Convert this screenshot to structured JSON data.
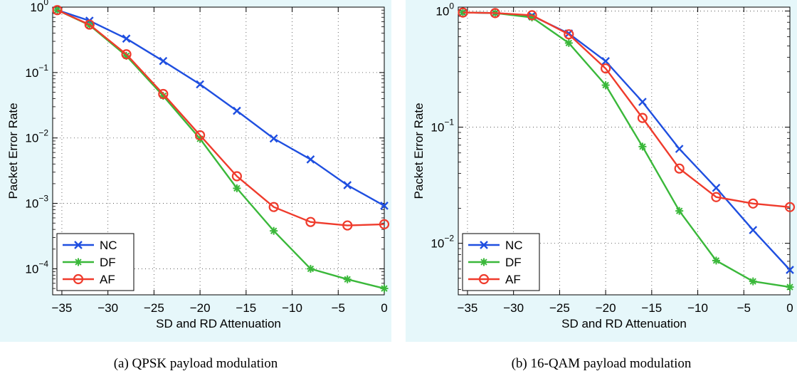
{
  "captions": {
    "a": "(a) QPSK payload modulation",
    "b": "(b) 16-QAM payload modulation"
  },
  "colors": {
    "panel_bg": "#e6f7fa",
    "NC": "#1f4fe0",
    "DF": "#3ab83a",
    "AF": "#ef3b2c"
  },
  "chart_data": [
    {
      "type": "line",
      "xlabel": "SD and RD Attenuation",
      "ylabel": "Packet Error Rate",
      "yscale": "log",
      "xlim": [
        -36,
        0
      ],
      "ylim": [
        4e-05,
        1
      ],
      "grid": true,
      "legend_position": "bottom-left",
      "xticks": [
        -35,
        -30,
        -25,
        -20,
        -15,
        -10,
        -5,
        0
      ],
      "xtick_labels": [
        "−35",
        "−30",
        "−25",
        "−20",
        "−15",
        "−10",
        "−5",
        "0"
      ],
      "yticks": [
        {
          "value": 0.0001,
          "base": "10",
          "exp": "−4"
        },
        {
          "value": 0.001,
          "base": "10",
          "exp": "−3"
        },
        {
          "value": 0.01,
          "base": "10",
          "exp": "−2"
        },
        {
          "value": 0.1,
          "base": "10",
          "exp": "−1"
        },
        {
          "value": 1,
          "base": "10",
          "exp": "0"
        }
      ],
      "series": [
        {
          "name": "NC",
          "marker": "x",
          "x": [
            -35.5,
            -32,
            -28,
            -24,
            -20,
            -16,
            -12,
            -8,
            -4,
            0
          ],
          "values": [
            0.9,
            0.62,
            0.33,
            0.15,
            0.066,
            0.026,
            0.0098,
            0.0047,
            0.0019,
            0.00092
          ]
        },
        {
          "name": "DF",
          "marker": "asterisk",
          "x": [
            -35.5,
            -32,
            -28,
            -24,
            -20,
            -16,
            -12,
            -8,
            -4,
            0
          ],
          "values": [
            0.9,
            0.53,
            0.18,
            0.044,
            0.0097,
            0.0017,
            0.00038,
            0.0001,
            6.9e-05,
            5e-05
          ]
        },
        {
          "name": "AF",
          "marker": "circle",
          "x": [
            -35.5,
            -32,
            -28,
            -24,
            -20,
            -16,
            -12,
            -8,
            -4,
            0
          ],
          "values": [
            0.9,
            0.54,
            0.19,
            0.047,
            0.011,
            0.0026,
            0.00088,
            0.00052,
            0.00046,
            0.00048
          ]
        }
      ]
    },
    {
      "type": "line",
      "xlabel": "SD and RD Attenuation",
      "ylabel": "Packet Error Rate",
      "yscale": "log",
      "xlim": [
        -36,
        0
      ],
      "ylim": [
        0.0036,
        1.08
      ],
      "grid": true,
      "legend_position": "bottom-left",
      "xticks": [
        -35,
        -30,
        -25,
        -20,
        -15,
        -10,
        -5,
        0
      ],
      "xtick_labels": [
        "−35",
        "−30",
        "−25",
        "−20",
        "−15",
        "−10",
        "−5",
        "0"
      ],
      "yticks": [
        {
          "value": 0.01,
          "base": "10",
          "exp": "−2"
        },
        {
          "value": 0.1,
          "base": "10",
          "exp": "−1"
        },
        {
          "value": 1,
          "base": "10",
          "exp": "0"
        }
      ],
      "series": [
        {
          "name": "NC",
          "marker": "x",
          "x": [
            -35.5,
            -32,
            -28,
            -24,
            -20,
            -16,
            -12,
            -8,
            -4,
            0
          ],
          "values": [
            0.97,
            0.96,
            0.91,
            0.64,
            0.37,
            0.165,
            0.065,
            0.03,
            0.013,
            0.0059
          ]
        },
        {
          "name": "DF",
          "marker": "asterisk",
          "x": [
            -35.5,
            -32,
            -28,
            -24,
            -20,
            -16,
            -12,
            -8,
            -4,
            0
          ],
          "values": [
            0.97,
            0.96,
            0.88,
            0.53,
            0.23,
            0.068,
            0.019,
            0.0071,
            0.0047,
            0.0042
          ]
        },
        {
          "name": "AF",
          "marker": "circle",
          "x": [
            -35.5,
            -32,
            -28,
            -24,
            -20,
            -16,
            -12,
            -8,
            -4,
            0
          ],
          "values": [
            0.97,
            0.96,
            0.92,
            0.63,
            0.32,
            0.12,
            0.044,
            0.025,
            0.022,
            0.0205
          ]
        }
      ]
    }
  ]
}
